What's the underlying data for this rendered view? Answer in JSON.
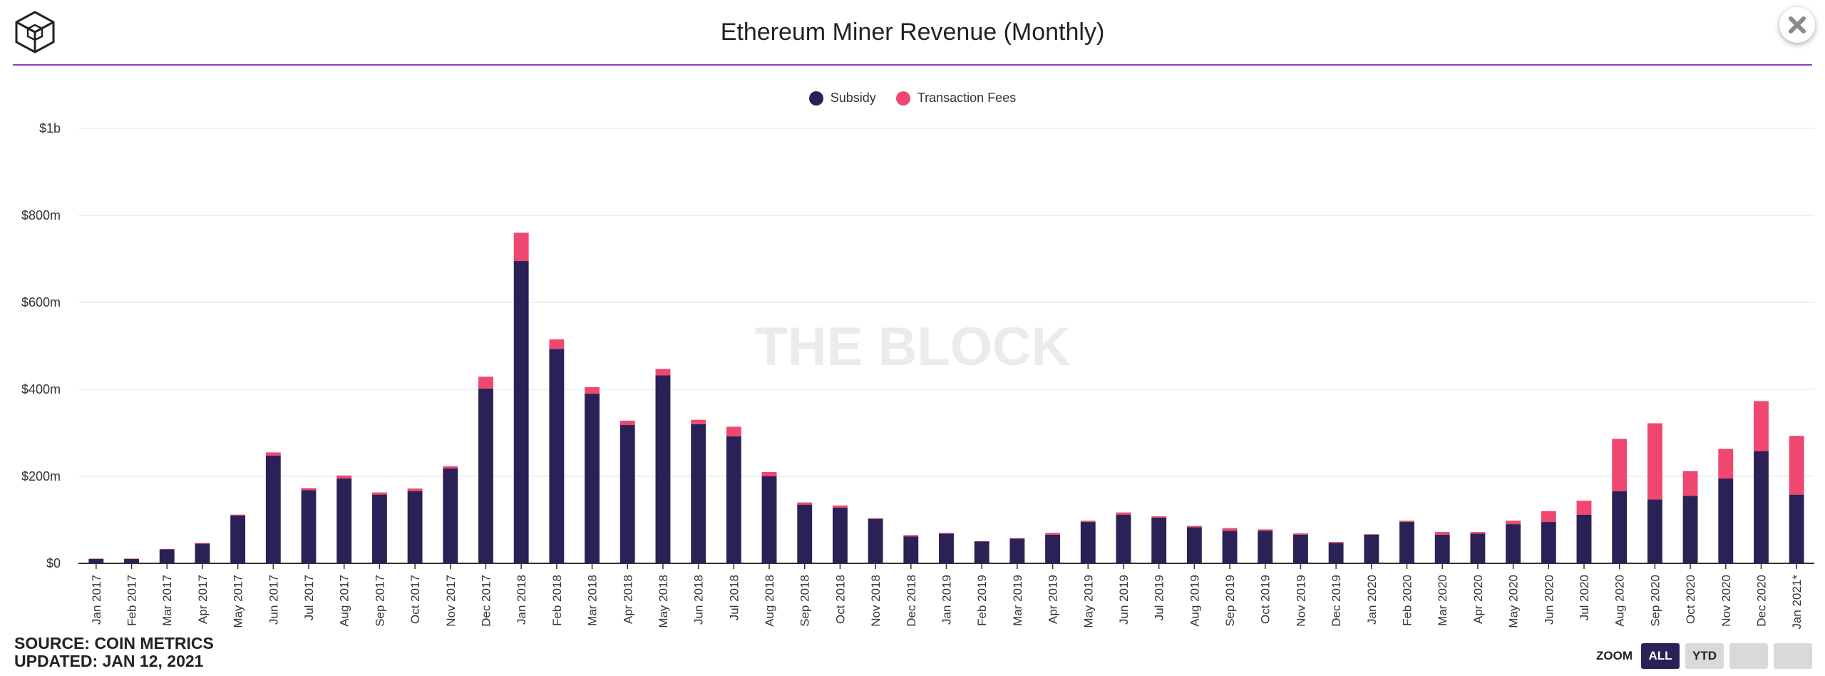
{
  "header": {
    "title": "Ethereum Miner Revenue (Monthly)",
    "close_icon": "close-icon",
    "logo_icon": "the-block-cube-logo-icon"
  },
  "legend": [
    {
      "name": "Subsidy",
      "color": "#2b2157"
    },
    {
      "name": "Transaction Fees",
      "color": "#ef4770"
    }
  ],
  "watermark": "THE BLOCK",
  "footer": {
    "source": "SOURCE: COIN METRICS",
    "updated": "UPDATED: JAN 12, 2021"
  },
  "zoom": {
    "label": "ZOOM",
    "buttons": [
      {
        "label": "ALL",
        "active": true
      },
      {
        "label": "YTD",
        "active": false
      },
      {
        "label": "",
        "active": false
      },
      {
        "label": "",
        "active": false
      }
    ]
  },
  "chart_data": {
    "type": "bar",
    "stacked": true,
    "title": "Ethereum Miner Revenue (Monthly)",
    "xlabel": "",
    "ylabel": "",
    "ylim": [
      0,
      1000
    ],
    "unit": "USD millions",
    "yticks": [
      {
        "value": 0,
        "label": "$0"
      },
      {
        "value": 200,
        "label": "$200m"
      },
      {
        "value": 400,
        "label": "$400m"
      },
      {
        "value": 600,
        "label": "$600m"
      },
      {
        "value": 800,
        "label": "$800m"
      },
      {
        "value": 1000,
        "label": "$1b"
      }
    ],
    "grid": true,
    "legend_position": "top-center",
    "categories": [
      "Jan 2017",
      "Feb 2017",
      "Mar 2017",
      "Apr 2017",
      "May 2017",
      "Jun 2017",
      "Jul 2017",
      "Aug 2017",
      "Sep 2017",
      "Oct 2017",
      "Nov 2017",
      "Dec 2017",
      "Jan 2018",
      "Feb 2018",
      "Mar 2018",
      "Apr 2018",
      "May 2018",
      "Jun 2018",
      "Jul 2018",
      "Aug 2018",
      "Sep 2018",
      "Oct 2018",
      "Nov 2018",
      "Dec 2018",
      "Jan 2019",
      "Feb 2019",
      "Mar 2019",
      "Apr 2019",
      "May 2019",
      "Jun 2019",
      "Jul 2019",
      "Aug 2019",
      "Sep 2019",
      "Oct 2019",
      "Nov 2019",
      "Dec 2019",
      "Jan 2020",
      "Feb 2020",
      "Mar 2020",
      "Apr 2020",
      "May 2020",
      "Jun 2020",
      "Jul 2020",
      "Aug 2020",
      "Sep 2020",
      "Oct 2020",
      "Nov 2020",
      "Dec 2020",
      "Jan 2021*"
    ],
    "series": [
      {
        "name": "Subsidy",
        "color": "#2b2157",
        "values": [
          10,
          10,
          32,
          45,
          110,
          248,
          168,
          195,
          158,
          166,
          218,
          402,
          695,
          493,
          390,
          318,
          432,
          320,
          292,
          200,
          135,
          128,
          102,
          62,
          68,
          50,
          57,
          66,
          95,
          112,
          105,
          83,
          75,
          75,
          66,
          47,
          66,
          95,
          66,
          68,
          90,
          95,
          112,
          166,
          147,
          155,
          195,
          258,
          158
        ]
      },
      {
        "name": "Transaction Fees",
        "color": "#ef4770",
        "values": [
          1,
          1,
          1,
          2,
          2,
          7,
          5,
          7,
          5,
          6,
          5,
          27,
          65,
          22,
          15,
          10,
          15,
          10,
          22,
          10,
          5,
          5,
          2,
          3,
          2,
          1,
          1,
          4,
          3,
          5,
          3,
          3,
          6,
          3,
          3,
          2,
          1,
          3,
          6,
          4,
          8,
          25,
          32,
          120,
          175,
          57,
          68,
          115,
          135
        ]
      }
    ]
  }
}
